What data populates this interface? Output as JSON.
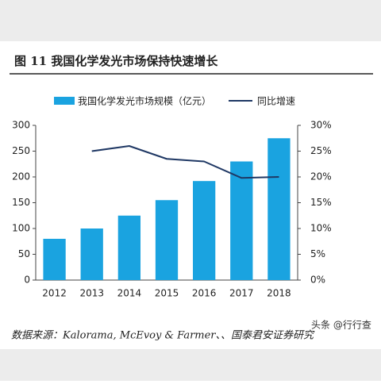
{
  "chart_data": {
    "type": "bar",
    "title": "图 11 我国化学发光市场保持快速增长",
    "categories": [
      "2012",
      "2013",
      "2014",
      "2015",
      "2016",
      "2017",
      "2018"
    ],
    "series": [
      {
        "name": "我国化学发光市场规模（亿元）",
        "color": "#1aa3e0",
        "values": [
          80,
          100,
          125,
          155,
          192,
          230,
          275
        ]
      },
      {
        "name": "同比增速",
        "color": "#1f3864",
        "axis": "y2",
        "type": "line",
        "values": [
          null,
          25,
          26,
          23.5,
          23,
          19.8,
          20
        ]
      }
    ],
    "ylim": [
      0,
      300
    ],
    "yticks": [
      0,
      50,
      100,
      150,
      200,
      250,
      300
    ],
    "y2lim": [
      0,
      30
    ],
    "y2ticks": [
      {
        "value": 0,
        "label": "0%"
      },
      {
        "value": 5,
        "label": "5%"
      },
      {
        "value": 10,
        "label": "10%"
      },
      {
        "value": 15,
        "label": "15%"
      },
      {
        "value": 20,
        "label": "20%"
      },
      {
        "value": 25,
        "label": "25%"
      },
      {
        "value": 30,
        "label": "30%"
      }
    ],
    "source": "数据来源：Kalorama, McEvoy & Farmer、、国泰君安证券研究",
    "watermark": "头条 @行行查"
  }
}
